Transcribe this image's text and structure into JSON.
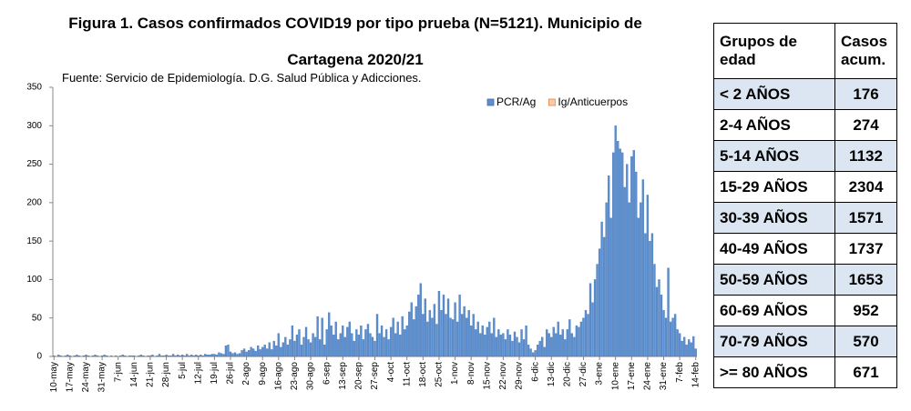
{
  "chart_data": {
    "type": "bar",
    "title": "Figura 1. Casos confirmados COVID19 por tipo prueba (N=5121). Municipio de Cartagena 2020/21",
    "subtitle": "Fuente: Servicio de Epidemiología. D.G. Salud Pública y Adicciones.",
    "categories": [
      "10-may",
      null,
      null,
      null,
      null,
      null,
      null,
      "17-may",
      null,
      null,
      null,
      null,
      null,
      null,
      "24-may",
      null,
      null,
      null,
      null,
      null,
      null,
      "31-may",
      null,
      null,
      null,
      null,
      null,
      null,
      "7-jun",
      null,
      null,
      null,
      null,
      null,
      null,
      "14-jun",
      null,
      null,
      null,
      null,
      null,
      null,
      "21-jun",
      null,
      null,
      null,
      null,
      null,
      null,
      "28-jun",
      null,
      null,
      null,
      null,
      null,
      null,
      "5-jul",
      null,
      null,
      null,
      null,
      null,
      null,
      "12-jul",
      null,
      null,
      null,
      null,
      null,
      null,
      "19-jul",
      null,
      null,
      null,
      null,
      null,
      null,
      "26-jul",
      null,
      null,
      null,
      null,
      null,
      null,
      "2-ago",
      null,
      null,
      null,
      null,
      null,
      null,
      "9-ago",
      null,
      null,
      null,
      null,
      null,
      null,
      "16-ago",
      null,
      null,
      null,
      null,
      null,
      null,
      "23-ago",
      null,
      null,
      null,
      null,
      null,
      null,
      "30-ago",
      null,
      null,
      null,
      null,
      null,
      null,
      "6-sep",
      null,
      null,
      null,
      null,
      null,
      null,
      "13-sep",
      null,
      null,
      null,
      null,
      null,
      null,
      "20-sep",
      null,
      null,
      null,
      null,
      null,
      null,
      "27-sep",
      null,
      null,
      null,
      null,
      null,
      null,
      "4-oct",
      null,
      null,
      null,
      null,
      null,
      null,
      "11-oct",
      null,
      null,
      null,
      null,
      null,
      null,
      "18-oct",
      null,
      null,
      null,
      null,
      null,
      null,
      "25-oct",
      null,
      null,
      null,
      null,
      null,
      null,
      "1-nov",
      null,
      null,
      null,
      null,
      null,
      null,
      "8-nov",
      null,
      null,
      null,
      null,
      null,
      null,
      "15-nov",
      null,
      null,
      null,
      null,
      null,
      null,
      "22-nov",
      null,
      null,
      null,
      null,
      null,
      null,
      "29-nov",
      null,
      null,
      null,
      null,
      null,
      null,
      "6-dic",
      null,
      null,
      null,
      null,
      null,
      null,
      "13-dic",
      null,
      null,
      null,
      null,
      null,
      null,
      "20-dic",
      null,
      null,
      null,
      null,
      null,
      null,
      "27-dic",
      null,
      null,
      null,
      null,
      null,
      null,
      "3-ene",
      null,
      null,
      null,
      null,
      null,
      null,
      "10-ene",
      null,
      null,
      null,
      null,
      null,
      null,
      "17-ene",
      null,
      null,
      null,
      null,
      null,
      null,
      "24-ene",
      null,
      null,
      null,
      null,
      null,
      null,
      "31-ene",
      null,
      null,
      null,
      null,
      null,
      null,
      "7-feb",
      null,
      null,
      null,
      null,
      null,
      null,
      "14-feb"
    ],
    "series": [
      {
        "name": "PCR/Ag",
        "color": "#5b8fd0",
        "values": [
          1,
          0,
          2,
          1,
          0,
          1,
          2,
          1,
          0,
          1,
          2,
          1,
          0,
          1,
          2,
          1,
          0,
          1,
          2,
          1,
          0,
          1,
          2,
          1,
          0,
          1,
          0,
          1,
          0,
          1,
          2,
          1,
          0,
          1,
          1,
          1,
          0,
          1,
          2,
          1,
          0,
          1,
          1,
          2,
          0,
          1,
          3,
          1,
          1,
          2,
          1,
          1,
          3,
          1,
          2,
          1,
          2,
          1,
          3,
          1,
          2,
          1,
          2,
          1,
          2,
          1,
          3,
          2,
          2,
          3,
          3,
          2,
          5,
          4,
          3,
          14,
          15,
          6,
          4,
          5,
          3,
          4,
          8,
          10,
          6,
          8,
          12,
          10,
          7,
          14,
          9,
          12,
          15,
          10,
          18,
          9,
          20,
          14,
          30,
          12,
          18,
          25,
          15,
          22,
          40,
          20,
          28,
          35,
          15,
          25,
          38,
          22,
          18,
          30,
          25,
          52,
          22,
          50,
          15,
          35,
          57,
          40,
          28,
          45,
          22,
          30,
          40,
          25,
          38,
          45,
          30,
          20,
          35,
          28,
          40,
          22,
          35,
          42,
          30,
          25,
          20,
          55,
          30,
          40,
          25,
          35,
          22,
          38,
          50,
          30,
          45,
          28,
          52,
          35,
          40,
          58,
          70,
          48,
          65,
          80,
          95,
          55,
          75,
          45,
          60,
          50,
          68,
          42,
          85,
          60,
          80,
          55,
          75,
          50,
          48,
          70,
          45,
          80,
          55,
          65,
          50,
          60,
          40,
          55,
          35,
          45,
          30,
          40,
          28,
          38,
          45,
          30,
          50,
          25,
          35,
          28,
          30,
          22,
          35,
          28,
          20,
          32,
          25,
          18,
          35,
          22,
          40,
          15,
          10,
          5,
          8,
          15,
          20,
          25,
          12,
          35,
          30,
          25,
          38,
          30,
          45,
          28,
          35,
          22,
          35,
          48,
          30,
          25,
          40,
          38,
          45,
          50,
          60,
          55,
          95,
          70,
          100,
          120,
          140,
          175,
          155,
          200,
          235,
          180,
          265,
          300,
          280,
          270,
          265,
          220,
          250,
          200,
          260,
          268,
          240,
          180,
          200,
          230,
          160,
          210,
          150,
          160,
          120,
          90,
          100,
          80,
          60,
          50,
          115,
          45,
          50,
          55,
          35,
          30,
          20,
          25,
          15,
          22,
          18,
          26,
          10
        ]
      },
      {
        "name": "Ig/Anticuerpos",
        "color": "#f8cbad",
        "values": [
          0,
          0,
          0,
          0,
          0,
          0,
          0,
          0,
          0,
          0,
          0,
          0,
          0,
          0,
          0,
          0,
          0,
          0,
          0,
          0,
          0,
          0,
          0,
          0,
          0,
          0,
          0,
          0,
          0,
          0,
          0,
          0,
          0,
          0,
          0,
          0,
          0,
          0,
          0,
          0,
          0,
          0,
          0,
          0,
          0,
          0,
          0,
          0,
          0,
          0,
          0,
          0,
          0,
          0,
          0,
          0,
          0,
          0,
          0,
          0,
          0,
          0,
          0,
          0,
          0,
          0,
          0,
          0,
          0,
          0,
          0,
          0,
          0,
          0,
          0,
          0,
          0,
          0,
          0,
          0,
          0,
          0,
          0,
          0,
          0,
          0,
          0,
          0,
          0,
          0,
          0,
          0,
          0,
          0,
          0,
          0,
          0,
          0,
          0,
          0,
          0,
          0,
          0,
          0,
          0,
          0,
          0,
          0,
          0,
          0,
          0,
          0,
          0,
          0,
          0,
          0,
          0,
          0,
          0,
          0,
          0,
          0,
          0,
          0,
          0,
          0,
          0,
          0,
          0,
          0,
          0,
          0,
          0,
          0,
          0,
          0,
          0,
          0,
          0,
          0,
          0,
          0,
          0,
          0,
          0,
          0,
          0,
          0,
          0,
          0,
          0,
          0,
          0,
          0,
          0,
          0,
          0,
          0,
          0,
          0,
          0,
          0,
          0,
          0,
          0,
          0,
          0,
          0,
          0,
          0,
          0,
          0,
          0,
          0,
          0,
          0,
          0,
          0,
          0,
          0,
          0,
          0,
          0,
          0,
          0,
          0,
          0,
          0,
          0,
          0,
          0,
          0,
          0,
          0,
          0,
          0,
          0,
          0,
          0,
          0,
          0,
          0,
          0,
          0,
          0,
          0,
          0,
          0,
          0,
          0,
          0,
          0,
          0,
          0,
          0,
          0,
          0,
          0,
          0,
          0,
          0,
          0,
          0,
          0,
          0,
          0,
          0,
          0,
          0,
          0,
          0,
          0,
          0,
          0,
          0,
          0,
          0,
          0,
          0,
          0,
          0,
          0,
          0,
          0,
          0,
          0,
          0,
          0,
          0,
          0,
          0,
          0,
          0,
          0,
          0,
          0,
          0,
          0,
          0,
          0,
          0,
          0,
          0,
          0,
          0,
          0,
          0,
          0,
          0,
          0,
          0,
          0,
          0,
          0,
          0,
          0,
          0,
          0,
          0,
          0,
          0
        ]
      }
    ],
    "ylim": [
      0,
      350
    ],
    "yticks": [
      0,
      50,
      100,
      150,
      200,
      250,
      300,
      350
    ],
    "grid": false,
    "stacked": true,
    "legend": "upper right"
  },
  "table": {
    "header": [
      "Grupos de edad",
      "Casos acum."
    ],
    "rows": [
      [
        "< 2 AÑOS",
        "176"
      ],
      [
        "2-4 AÑOS",
        "274"
      ],
      [
        "5-14 AÑOS",
        "1132"
      ],
      [
        "15-29 AÑOS",
        "2304"
      ],
      [
        "30-39 AÑOS",
        "1571"
      ],
      [
        "40-49 AÑOS",
        "1737"
      ],
      [
        "50-59 AÑOS",
        "1653"
      ],
      [
        "60-69 AÑOS",
        "952"
      ],
      [
        "70-79 AÑOS",
        "570"
      ],
      [
        ">= 80 AÑOS",
        "671"
      ]
    ]
  }
}
